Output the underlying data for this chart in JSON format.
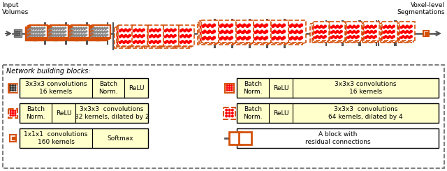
{
  "bg_color": "#ffffff",
  "orange": "#D4500A",
  "gray": "#777777",
  "dark_gray": "#555555",
  "yellow_fill": "#FFFFCC",
  "black": "#000000",
  "text_input": "Input\nVolumes",
  "text_output": "Voxel-level\nSegmentations",
  "text_network": "Network building blocks:"
}
